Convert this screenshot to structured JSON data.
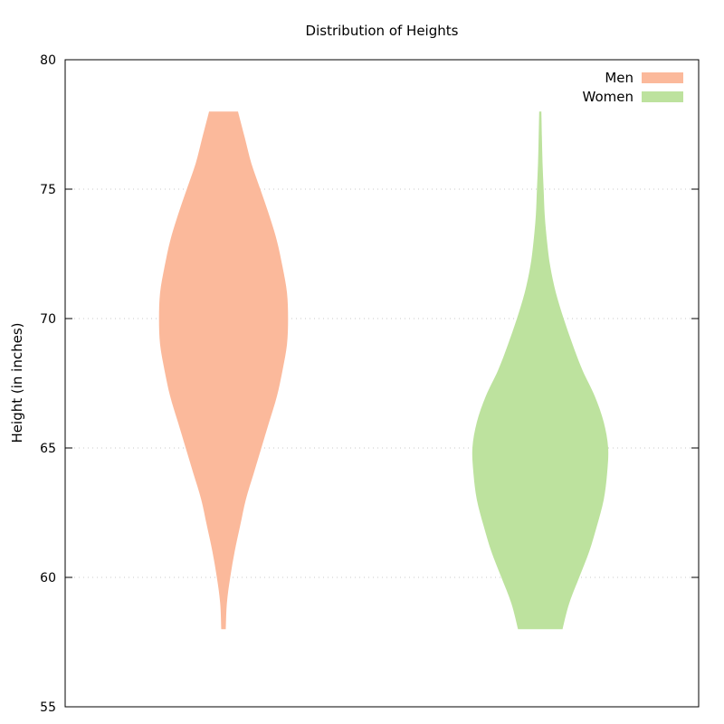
{
  "chart_data": {
    "type": "violin",
    "title": "Distribution of Heights",
    "xlabel": "",
    "ylabel": "Height (in inches)",
    "ylim": [
      55,
      80
    ],
    "yticks": [
      55,
      60,
      65,
      70,
      75,
      80
    ],
    "grid": true,
    "legend_position": "top-right",
    "series": [
      {
        "name": "Men",
        "color": "#fbb99b",
        "center": 0.25,
        "range": [
          58,
          78
        ],
        "profile_y": [
          58,
          59,
          60,
          61,
          62,
          63,
          64,
          65,
          66,
          67,
          68,
          69,
          70,
          71,
          72,
          73,
          74,
          75,
          76,
          77,
          78
        ],
        "profile_width": [
          0.2,
          0.3,
          0.6,
          1.0,
          1.5,
          2.0,
          2.7,
          3.4,
          4.1,
          4.8,
          5.3,
          5.7,
          5.8,
          5.7,
          5.3,
          4.8,
          4.1,
          3.3,
          2.5,
          1.9,
          1.3
        ]
      },
      {
        "name": "Women",
        "color": "#bde29e",
        "center": 0.75,
        "range": [
          58,
          78
        ],
        "profile_y": [
          58,
          59,
          60,
          61,
          62,
          63,
          64,
          65,
          66,
          67,
          68,
          69,
          70,
          71,
          72,
          73,
          74,
          75,
          76,
          77,
          78
        ],
        "profile_width": [
          2.0,
          2.6,
          3.5,
          4.4,
          5.1,
          5.7,
          6.0,
          6.1,
          5.7,
          4.9,
          3.8,
          2.9,
          2.1,
          1.4,
          0.9,
          0.6,
          0.4,
          0.3,
          0.2,
          0.15,
          0.1
        ]
      }
    ]
  }
}
